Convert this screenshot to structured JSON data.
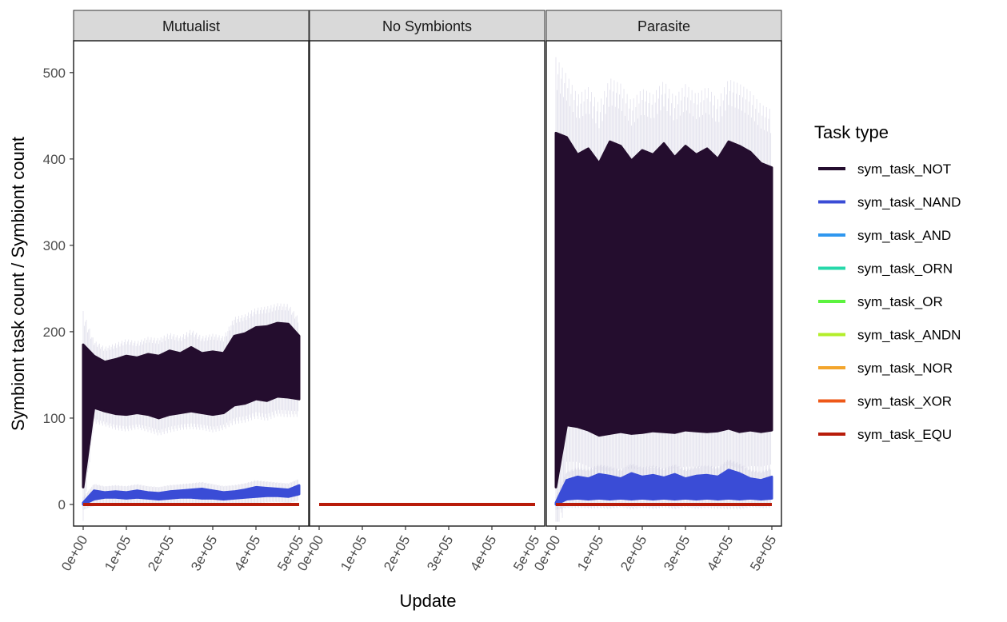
{
  "chart_data": {
    "type": "line",
    "facets": [
      "Mutualist",
      "No Symbionts",
      "Parasite"
    ],
    "xlabel": "Update",
    "ylabel": "Symbiont task count / Symbiont count",
    "xlim": [
      0,
      500000
    ],
    "ylim": [
      -25,
      535
    ],
    "x_ticks": [
      0,
      100000,
      200000,
      300000,
      400000,
      500000
    ],
    "x_tick_labels": [
      "0e+00",
      "1e+05",
      "2e+05",
      "3e+05",
      "4e+05",
      "5e+05"
    ],
    "y_ticks": [
      0,
      100,
      200,
      300,
      400,
      500
    ],
    "y_tick_labels": [
      "0",
      "100",
      "200",
      "300",
      "400",
      "500"
    ],
    "legend": {
      "title": "Task type",
      "position": "right",
      "entries": [
        {
          "label": "sym_task_NOT",
          "color": "#240d2e"
        },
        {
          "label": "sym_task_NAND",
          "color": "#3a4cd6"
        },
        {
          "label": "sym_task_AND",
          "color": "#2f97ef"
        },
        {
          "label": "sym_task_ORN",
          "color": "#26d8aa"
        },
        {
          "label": "sym_task_OR",
          "color": "#5cf33f"
        },
        {
          "label": "sym_task_ANDN",
          "color": "#b3ee2a"
        },
        {
          "label": "sym_task_NOR",
          "color": "#f3a52c"
        },
        {
          "label": "sym_task_XOR",
          "color": "#ee5818"
        },
        {
          "label": "sym_task_EQU",
          "color": "#b81c0a"
        }
      ]
    },
    "series": [
      {
        "facet": "Mutualist",
        "name": "sym_task_NOT",
        "x": [
          0,
          25000,
          50000,
          75000,
          100000,
          125000,
          150000,
          175000,
          200000,
          225000,
          250000,
          275000,
          300000,
          325000,
          350000,
          375000,
          400000,
          425000,
          450000,
          475000,
          500000
        ],
        "low": [
          20,
          112,
          108,
          105,
          104,
          106,
          104,
          100,
          104,
          106,
          108,
          106,
          104,
          106,
          115,
          117,
          122,
          120,
          125,
          124,
          122
        ],
        "high": [
          185,
          172,
          165,
          168,
          172,
          170,
          174,
          172,
          178,
          175,
          182,
          175,
          177,
          175,
          195,
          198,
          205,
          206,
          210,
          209,
          195
        ]
      },
      {
        "facet": "Mutualist",
        "name": "sym_task_NAND",
        "x": [
          0,
          25000,
          50000,
          75000,
          100000,
          125000,
          150000,
          175000,
          200000,
          225000,
          250000,
          275000,
          300000,
          325000,
          350000,
          375000,
          400000,
          425000,
          450000,
          475000,
          500000
        ],
        "low": [
          0,
          6,
          8,
          8,
          7,
          8,
          7,
          6,
          7,
          8,
          8,
          7,
          7,
          6,
          7,
          8,
          9,
          10,
          10,
          9,
          12
        ],
        "high": [
          2,
          16,
          14,
          15,
          14,
          16,
          14,
          13,
          15,
          16,
          17,
          18,
          16,
          14,
          15,
          17,
          20,
          19,
          18,
          17,
          22
        ]
      },
      {
        "facet": "Parasite",
        "name": "sym_task_NOT",
        "x": [
          0,
          25000,
          50000,
          75000,
          100000,
          125000,
          150000,
          175000,
          200000,
          225000,
          250000,
          275000,
          300000,
          325000,
          350000,
          375000,
          400000,
          425000,
          450000,
          475000,
          500000
        ],
        "low": [
          20,
          92,
          90,
          86,
          80,
          82,
          84,
          82,
          83,
          85,
          84,
          83,
          86,
          85,
          84,
          85,
          88,
          84,
          86,
          84,
          86
        ],
        "high": [
          430,
          425,
          405,
          412,
          395,
          420,
          415,
          398,
          410,
          405,
          418,
          402,
          415,
          405,
          412,
          400,
          420,
          415,
          408,
          395,
          390
        ]
      },
      {
        "facet": "Parasite",
        "name": "sym_task_NAND",
        "x": [
          0,
          25000,
          50000,
          75000,
          100000,
          125000,
          150000,
          175000,
          200000,
          225000,
          250000,
          275000,
          300000,
          325000,
          350000,
          375000,
          400000,
          425000,
          450000,
          475000,
          500000
        ],
        "low": [
          0,
          6,
          7,
          6,
          7,
          6,
          7,
          6,
          7,
          6,
          7,
          6,
          7,
          6,
          7,
          6,
          7,
          6,
          7,
          6,
          7
        ],
        "high": [
          2,
          28,
          32,
          30,
          35,
          33,
          30,
          36,
          32,
          34,
          31,
          35,
          30,
          33,
          34,
          32,
          40,
          36,
          30,
          28,
          32
        ]
      },
      {
        "facet": "Mutualist",
        "name": "sym_task_EQU",
        "x": [
          0,
          500000
        ],
        "y": [
          0,
          0
        ]
      },
      {
        "facet": "No Symbionts",
        "name": "sym_task_EQU",
        "x": [
          0,
          500000
        ],
        "y": [
          0,
          0
        ]
      },
      {
        "facet": "Parasite",
        "name": "sym_task_EQU",
        "x": [
          0,
          500000
        ],
        "y": [
          0,
          0
        ]
      }
    ]
  }
}
